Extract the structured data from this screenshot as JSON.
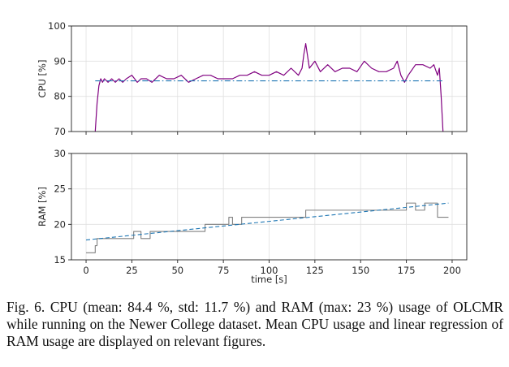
{
  "chart_data": [
    {
      "type": "line",
      "ylabel": "CPU [%]",
      "xlim": [
        -8,
        208
      ],
      "ylim": [
        70,
        100
      ],
      "yticks": [
        "70",
        "80",
        "90",
        "100"
      ],
      "grid": true,
      "series": [
        {
          "color": "#800080",
          "style": "solid",
          "x": [
            5,
            6,
            7,
            8,
            9,
            10,
            12,
            14,
            16,
            18,
            20,
            22,
            25,
            28,
            30,
            33,
            36,
            40,
            44,
            48,
            52,
            56,
            60,
            64,
            68,
            72,
            76,
            80,
            84,
            88,
            92,
            96,
            100,
            104,
            108,
            112,
            116,
            118,
            119,
            120,
            122,
            125,
            128,
            132,
            136,
            140,
            144,
            148,
            152,
            156,
            160,
            164,
            168,
            170,
            172,
            174,
            176,
            180,
            184,
            188,
            190,
            192,
            193,
            194,
            195
          ],
          "values": [
            70,
            78,
            83,
            85,
            84,
            85,
            84,
            85,
            84,
            85,
            84,
            85,
            86,
            84,
            85,
            85,
            84,
            86,
            85,
            85,
            86,
            84,
            85,
            86,
            86,
            85,
            85,
            85,
            86,
            86,
            87,
            86,
            86,
            87,
            86,
            88,
            86,
            88,
            92,
            95,
            88,
            90,
            87,
            89,
            87,
            88,
            88,
            87,
            90,
            88,
            87,
            87,
            88,
            90,
            86,
            84,
            86,
            89,
            89,
            88,
            89,
            86,
            88,
            80,
            70
          ]
        },
        {
          "color": "#1f77b4",
          "style": "dashdot",
          "x": [
            5,
            195
          ],
          "values": [
            84.4,
            84.4
          ]
        }
      ]
    },
    {
      "type": "line",
      "xlabel": "time [s]",
      "ylabel": "RAM [%]",
      "xlim": [
        -8,
        208
      ],
      "ylim": [
        15,
        30
      ],
      "xticks": [
        "0",
        "25",
        "50",
        "75",
        "100",
        "125",
        "150",
        "175",
        "200"
      ],
      "yticks": [
        "15",
        "20",
        "25",
        "30"
      ],
      "grid": true,
      "series": [
        {
          "color": "#808080",
          "style": "steps",
          "x": [
            0,
            5,
            6,
            10,
            15,
            20,
            25,
            26,
            30,
            35,
            40,
            45,
            55,
            60,
            65,
            70,
            75,
            78,
            80,
            85,
            90,
            95,
            100,
            105,
            110,
            115,
            120,
            125,
            130,
            135,
            140,
            145,
            150,
            155,
            160,
            165,
            170,
            175,
            180,
            185,
            190,
            192,
            198
          ],
          "values": [
            16,
            17,
            18,
            18,
            18,
            18,
            18,
            19,
            18,
            19,
            19,
            19,
            19,
            19,
            20,
            20,
            20,
            21,
            20,
            21,
            21,
            21,
            21,
            21,
            21,
            21,
            22,
            22,
            22,
            22,
            22,
            22,
            22,
            22,
            22,
            22,
            22,
            23,
            22,
            23,
            23,
            21,
            21
          ]
        },
        {
          "color": "#1f77b4",
          "style": "dashed",
          "x": [
            0,
            198
          ],
          "values": [
            17.8,
            23
          ]
        }
      ]
    }
  ],
  "caption": {
    "text": "Fig. 6.    CPU (mean: 84.4 %, std: 11.7 %) and RAM (max: 23 %) usage of OLCMR while running on the Newer College dataset. Mean CPU usage and linear regression of RAM usage are displayed on relevant figures."
  }
}
